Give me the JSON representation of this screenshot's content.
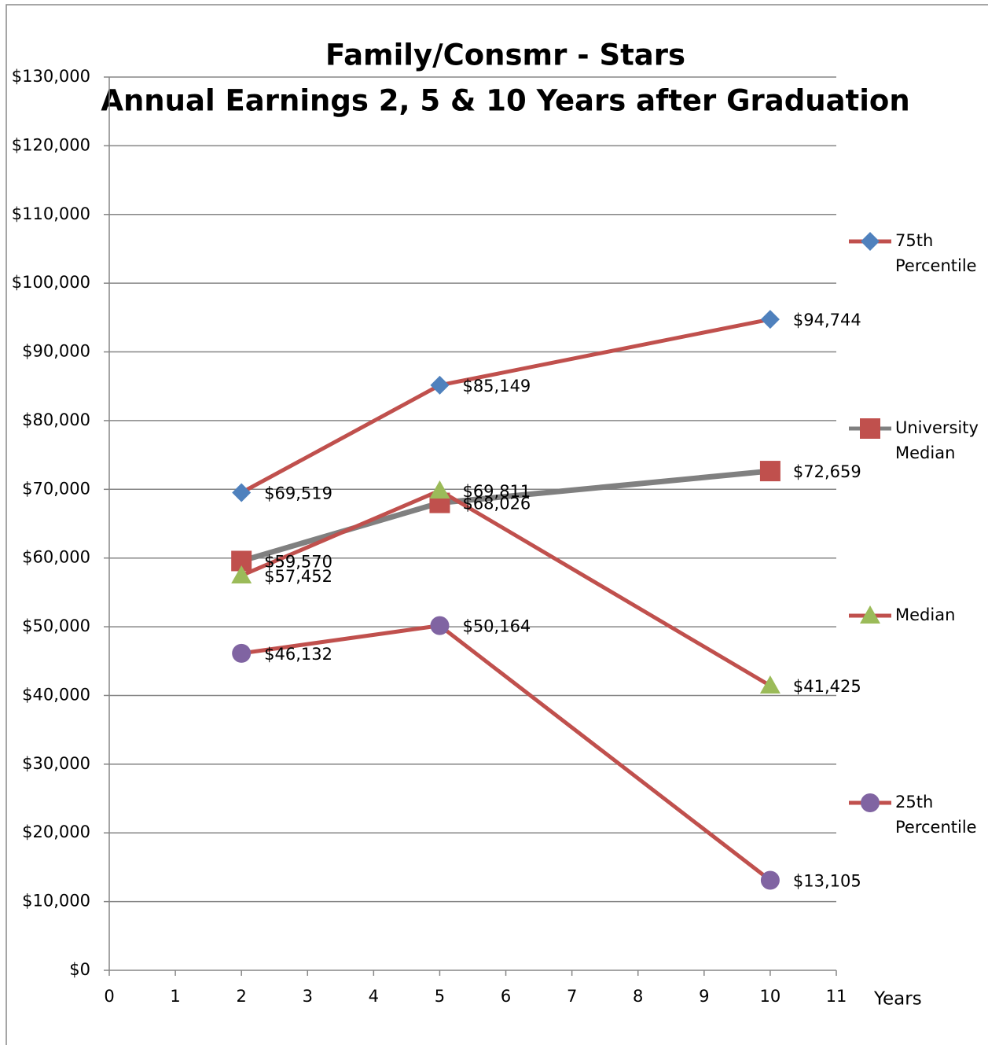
{
  "chart_data": {
    "type": "line",
    "title": "Family/Consmr - Stars",
    "subtitle": "Annual Earnings 2, 5 & 10 Years after Graduation",
    "x_label": "Years",
    "x": [
      2,
      5,
      10
    ],
    "xlim": [
      0,
      11
    ],
    "xticks": [
      0,
      1,
      2,
      3,
      4,
      5,
      6,
      7,
      8,
      9,
      10,
      11
    ],
    "ylim": [
      0,
      130000
    ],
    "yticks": [
      {
        "value": 0,
        "label": "$0"
      },
      {
        "value": 10000,
        "label": "$10,000"
      },
      {
        "value": 20000,
        "label": "$20,000"
      },
      {
        "value": 30000,
        "label": "$30,000"
      },
      {
        "value": 40000,
        "label": "$40,000"
      },
      {
        "value": 50000,
        "label": "$50,000"
      },
      {
        "value": 60000,
        "label": "$60,000"
      },
      {
        "value": 70000,
        "label": "$70,000"
      },
      {
        "value": 80000,
        "label": "$80,000"
      },
      {
        "value": 90000,
        "label": "$90,000"
      },
      {
        "value": 100000,
        "label": "$100,000"
      },
      {
        "value": 110000,
        "label": "$110,000"
      },
      {
        "value": 120000,
        "label": "$120,000"
      },
      {
        "value": 130000,
        "label": "$130,000"
      }
    ],
    "grid": true,
    "legend": "right",
    "series": [
      {
        "name": "75th Percentile",
        "color": "#c0504d",
        "marker": "diamond",
        "marker_color": "#4f81bd",
        "values": [
          69519,
          85149,
          94744
        ],
        "value_labels": [
          "$69,519",
          "$85,149",
          "$94,744"
        ]
      },
      {
        "name": "University Median",
        "color": "#808080",
        "marker": "square",
        "marker_color": "#c0504d",
        "values": [
          59570,
          68026,
          72659
        ],
        "value_labels": [
          "$59,570",
          "$68,026",
          "$72,659"
        ]
      },
      {
        "name": "Median",
        "color": "#c0504d",
        "marker": "triangle",
        "marker_color": "#9bbb59",
        "values": [
          57452,
          69811,
          41425
        ],
        "value_labels": [
          "$57,452",
          "$69,811",
          "$41,425"
        ]
      },
      {
        "name": "25th Percentile",
        "color": "#c0504d",
        "marker": "circle",
        "marker_color": "#8064a2",
        "values": [
          46132,
          50164,
          13105
        ],
        "value_labels": [
          "$46,132",
          "$50,164",
          "$13,105"
        ]
      }
    ]
  }
}
